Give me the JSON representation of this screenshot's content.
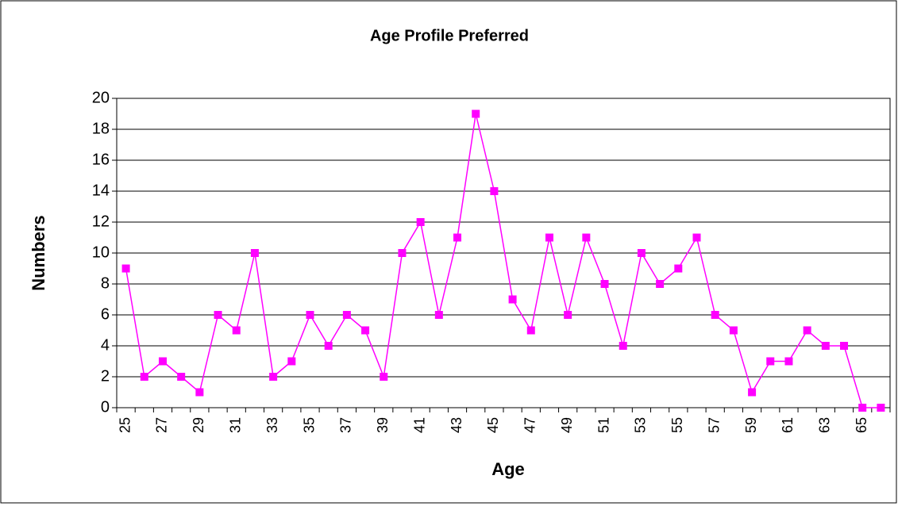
{
  "chart_data": {
    "type": "line",
    "title": "Age Profile Preferred",
    "x_label": "Age",
    "y_label": "Numbers",
    "categories": [
      "25",
      null,
      "27",
      null,
      "29",
      null,
      "31",
      null,
      "33",
      null,
      "35",
      null,
      "37",
      null,
      "39",
      null,
      "41",
      null,
      "43",
      null,
      "45",
      null,
      "47",
      null,
      "49",
      null,
      "51",
      null,
      "53",
      null,
      "55",
      null,
      "57",
      null,
      "59",
      null,
      "61",
      null,
      "63",
      null,
      "65",
      null
    ],
    "series": [
      {
        "name": "Numbers",
        "color": "#ff00ff",
        "values": [
          9,
          2,
          3,
          2,
          1,
          6,
          5,
          10,
          2,
          3,
          6,
          4,
          6,
          5,
          2,
          10,
          12,
          6,
          11,
          19,
          14,
          7,
          5,
          11,
          6,
          11,
          8,
          4,
          10,
          8,
          9,
          11,
          6,
          5,
          1,
          3,
          3,
          5,
          4,
          4,
          0,
          0
        ]
      }
    ],
    "ylim": [
      0,
      20
    ],
    "yticks": [
      0,
      2,
      4,
      6,
      8,
      10,
      12,
      14,
      16,
      18,
      20
    ],
    "grid": true
  }
}
